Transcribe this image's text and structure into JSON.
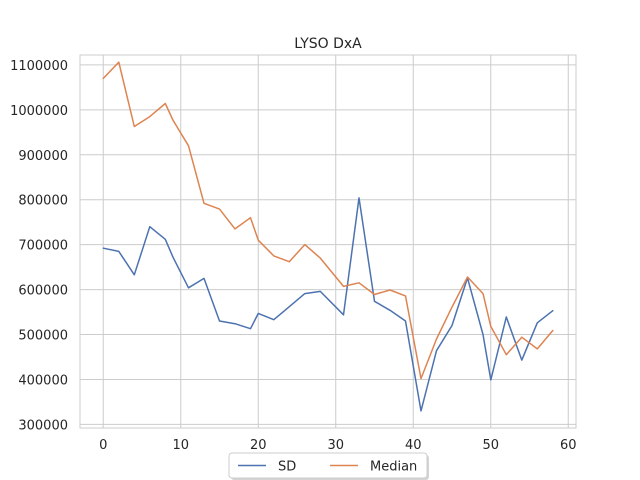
{
  "chart_data": {
    "type": "line",
    "title": "LYSO DxA",
    "xlabel": "",
    "ylabel": "",
    "xlim": [
      -3.0,
      61.0
    ],
    "ylim": [
      292000,
      1122000
    ],
    "xticks": [
      0,
      10,
      20,
      30,
      40,
      50,
      60
    ],
    "yticks": [
      300000,
      400000,
      500000,
      600000,
      700000,
      800000,
      900000,
      1000000,
      1100000
    ],
    "grid": true,
    "legend_position": "bottom-center",
    "series": [
      {
        "name": "SD",
        "color": "#4c72b0",
        "x": [
          0,
          2,
          4,
          6,
          8,
          9,
          11,
          13,
          15,
          17,
          19,
          20,
          22,
          24,
          26,
          28,
          31,
          33,
          35,
          37,
          39,
          41,
          43,
          45,
          47,
          49,
          50,
          52,
          54,
          56,
          58
        ],
        "y": [
          692000,
          685000,
          633000,
          740000,
          712000,
          672000,
          604000,
          625000,
          530000,
          524000,
          513000,
          547000,
          533000,
          562000,
          591000,
          596000,
          544000,
          804000,
          574000,
          554000,
          530000,
          330000,
          464000,
          520000,
          626000,
          500000,
          399000,
          539000,
          443000,
          526000,
          553000
        ]
      },
      {
        "name": "Median",
        "color": "#dd8452",
        "x": [
          0,
          2,
          4,
          6,
          8,
          9,
          11,
          13,
          15,
          17,
          19,
          20,
          22,
          24,
          26,
          28,
          31,
          33,
          35,
          37,
          39,
          41,
          43,
          45,
          47,
          49,
          50,
          52,
          54,
          56,
          58
        ],
        "y": [
          1070000,
          1106000,
          963000,
          985000,
          1014000,
          977000,
          920000,
          792000,
          779000,
          735000,
          760000,
          710000,
          675000,
          662000,
          700000,
          670000,
          607000,
          615000,
          589000,
          599000,
          586000,
          402000,
          490000,
          561000,
          628000,
          591000,
          518000,
          455000,
          494000,
          468000,
          509000
        ]
      }
    ]
  }
}
